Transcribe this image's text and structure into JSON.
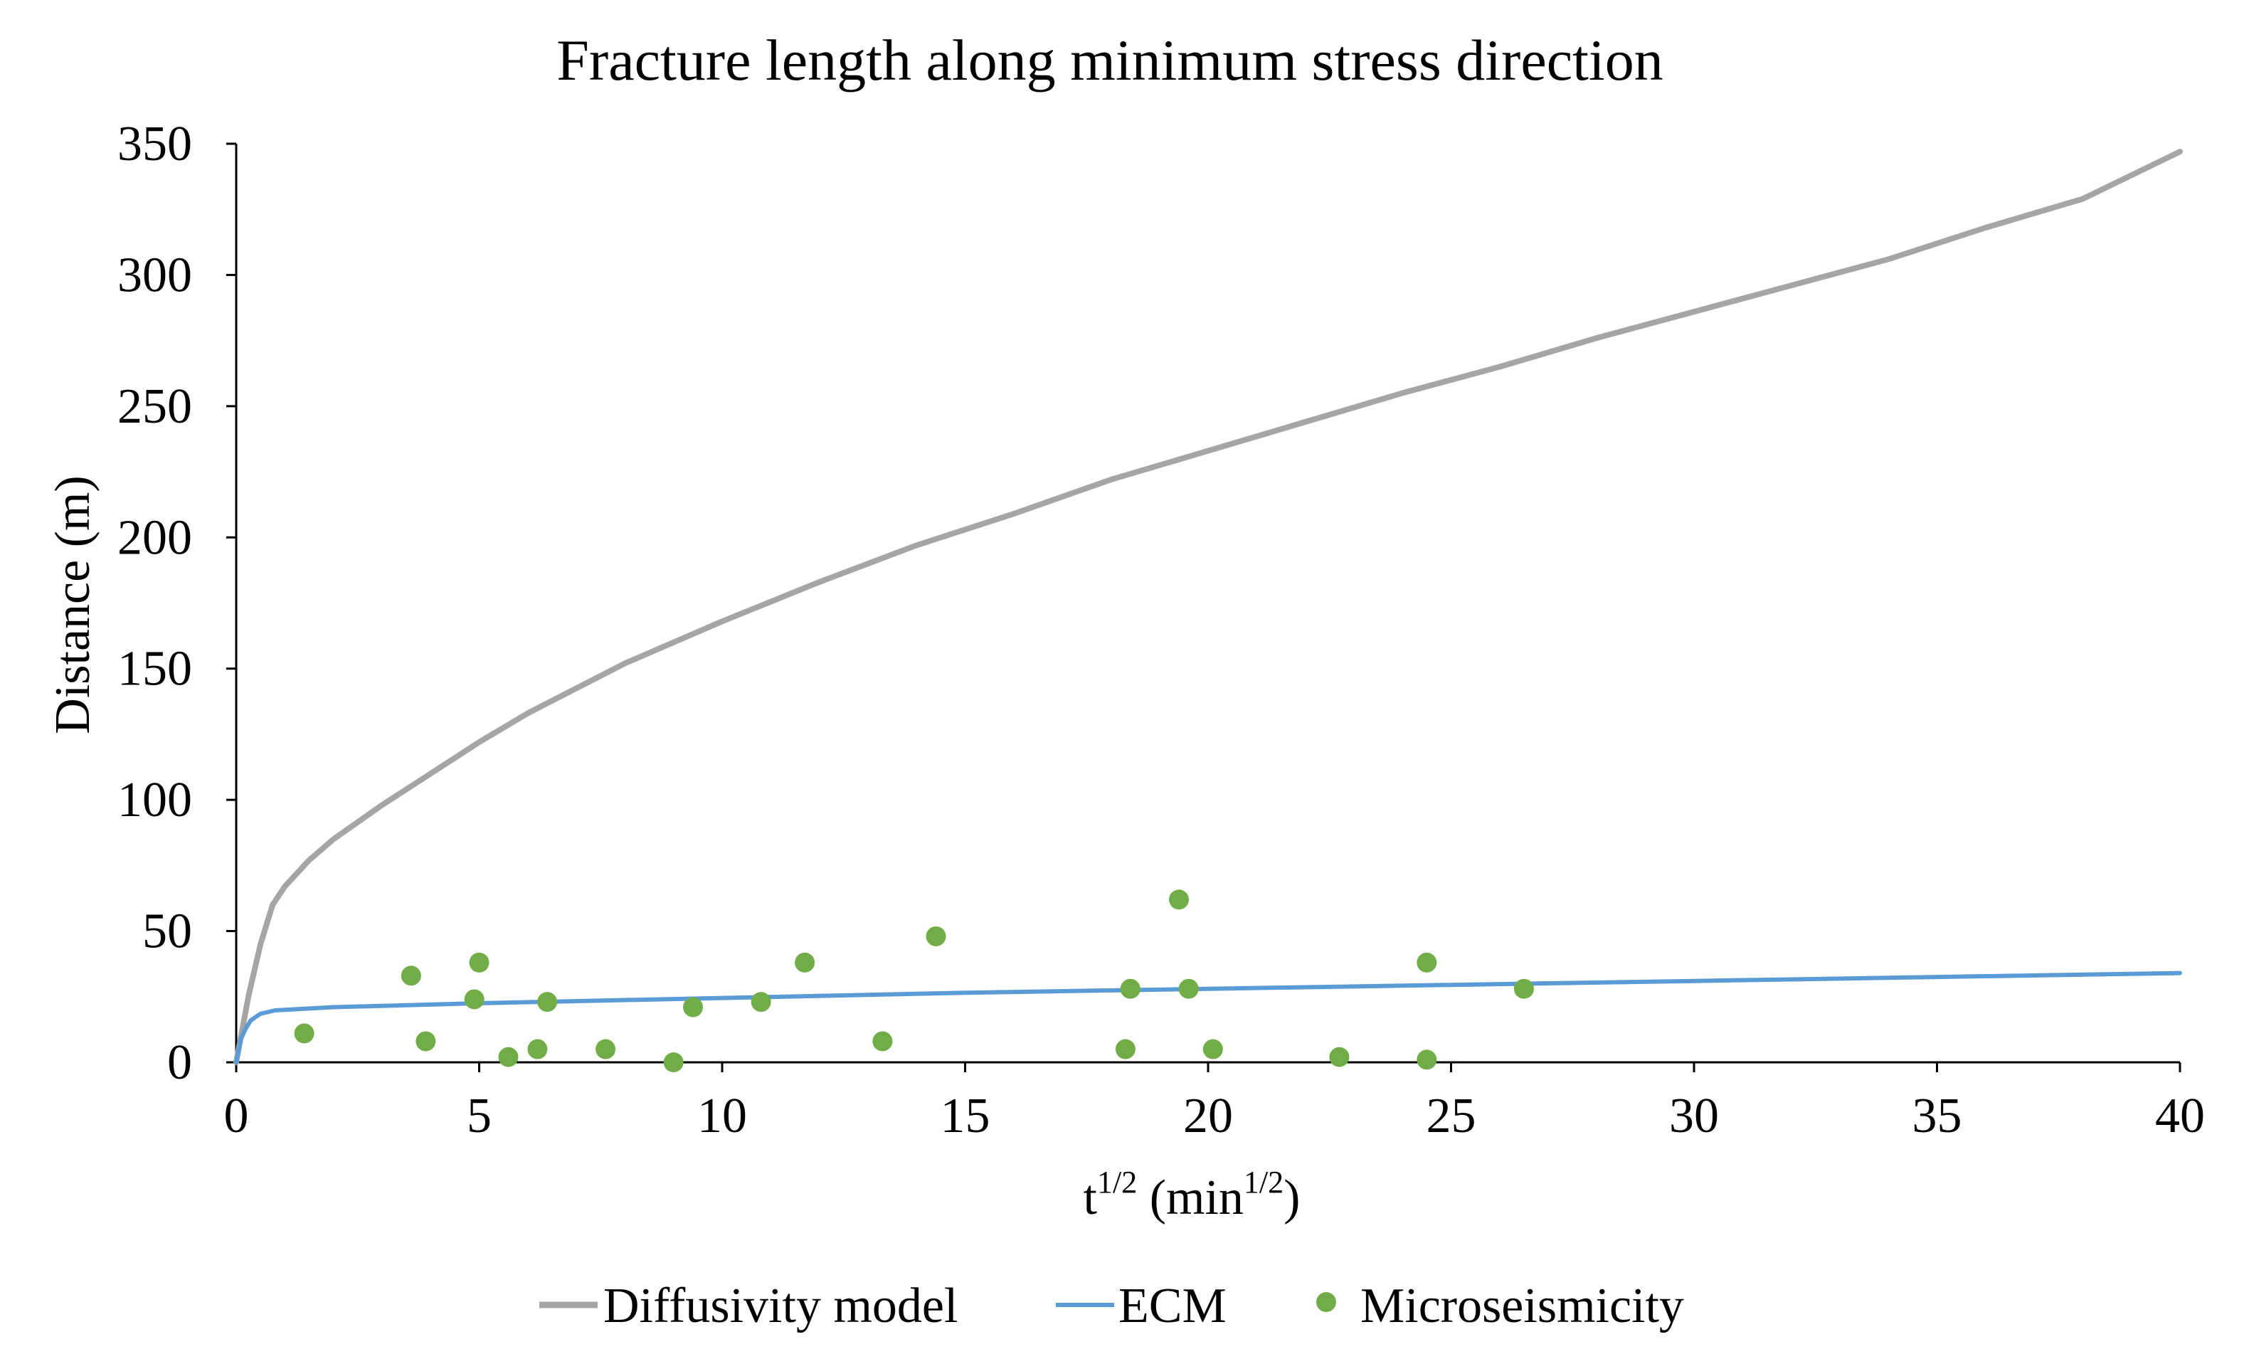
{
  "chart_data": {
    "type": "line",
    "title": "Fracture length along minimum stress direction",
    "xlabel": {
      "base": "t",
      "base_exp": "1/2",
      "unit_open": " (min",
      "unit_exp": "1/2",
      "unit_close": ")"
    },
    "ylabel": "Distance (m)",
    "xlim": [
      0,
      40
    ],
    "ylim": [
      0,
      350
    ],
    "xticks": [
      0,
      5,
      10,
      15,
      20,
      25,
      30,
      35,
      40
    ],
    "yticks": [
      0,
      50,
      100,
      150,
      200,
      250,
      300,
      350
    ],
    "grid": false,
    "legend_position": "bottom",
    "colors": {
      "diffusivity": "#a5a5a5",
      "ecm": "#5b9bd5",
      "microseismicity": "#70ad47",
      "axis": "#000000"
    },
    "series": [
      {
        "name": "Diffusivity model",
        "kind": "line",
        "x": [
          0,
          0.25,
          0.5,
          0.75,
          1.0,
          1.5,
          2.0,
          3.0,
          4.0,
          5.0,
          6.0,
          8.0,
          10.0,
          12.0,
          14.0,
          16.0,
          18.0,
          20.0,
          22.0,
          24.0,
          26.0,
          28.0,
          30.0,
          32.0,
          34.0,
          36.0,
          38.0,
          40.0
        ],
        "y": [
          0,
          25,
          45,
          60,
          67,
          77,
          85,
          98,
          110,
          122,
          133,
          152,
          168,
          183,
          197,
          209,
          222,
          233,
          244,
          255,
          265,
          276,
          286,
          296,
          306,
          318,
          329,
          347
        ]
      },
      {
        "name": "ECM",
        "kind": "line",
        "x": [
          0,
          0.1,
          0.2,
          0.3,
          0.5,
          0.8,
          1.0,
          2,
          5,
          10,
          15,
          20,
          25,
          30,
          35,
          40
        ],
        "y": [
          0,
          9,
          13,
          16,
          18.5,
          19.8,
          20,
          21,
          22.5,
          24.5,
          26.5,
          28,
          29.5,
          31,
          32.5,
          34
        ]
      },
      {
        "name": "Microseismicity",
        "kind": "scatter",
        "x": [
          1.4,
          3.6,
          3.9,
          4.9,
          5.0,
          5.6,
          6.2,
          6.4,
          7.6,
          9.0,
          9.4,
          10.8,
          11.7,
          13.3,
          14.4,
          18.3,
          18.4,
          19.4,
          19.6,
          20.1,
          22.7,
          24.5,
          24.5,
          26.5
        ],
        "y": [
          11,
          33,
          8,
          24,
          38,
          2,
          5,
          23,
          5,
          0,
          21,
          23,
          38,
          8,
          48,
          5,
          28,
          62,
          28,
          5,
          2,
          38,
          1,
          28
        ]
      }
    ]
  }
}
